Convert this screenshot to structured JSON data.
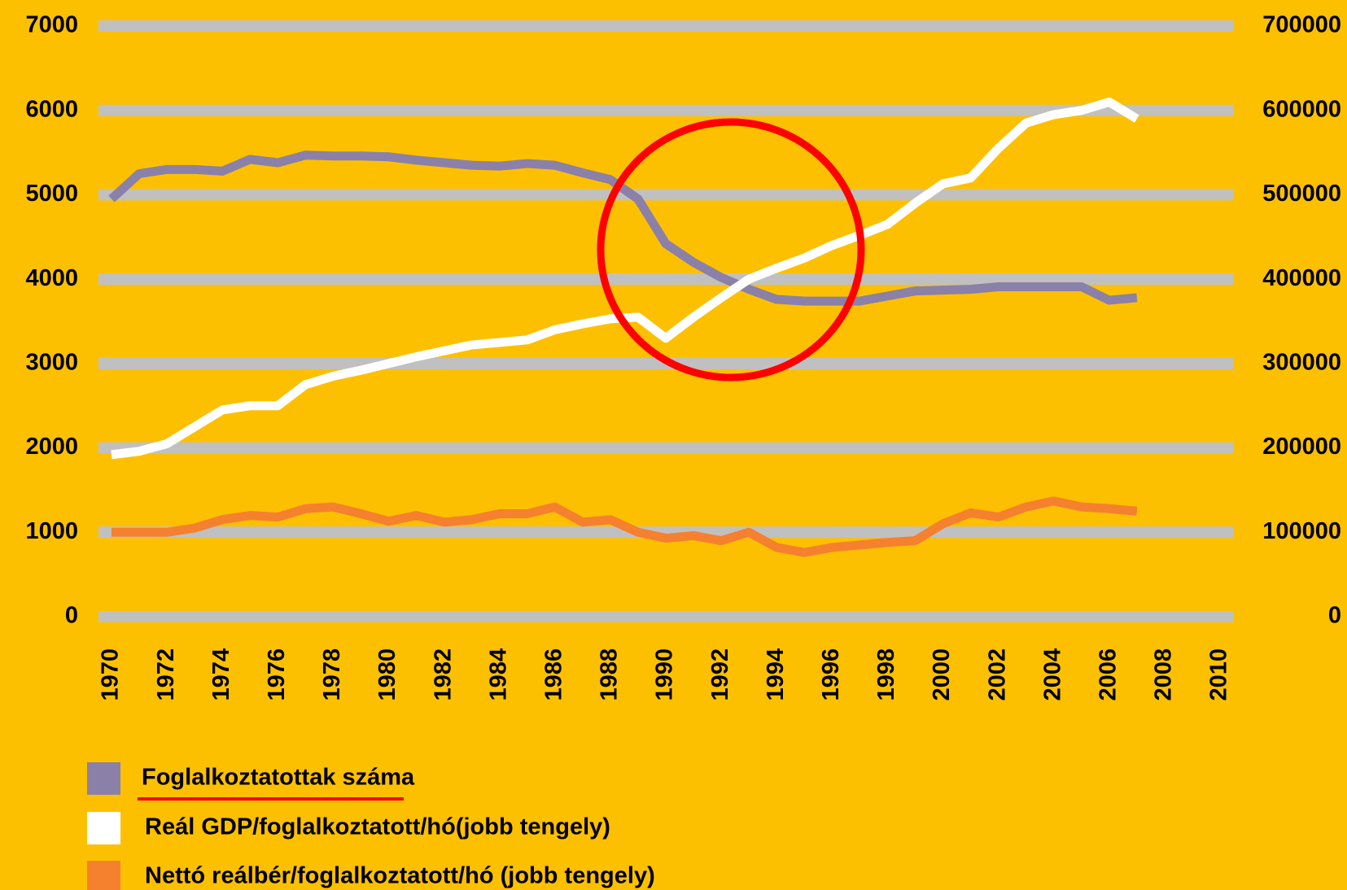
{
  "chart_data": {
    "type": "line",
    "x": [
      1970,
      1971,
      1972,
      1973,
      1974,
      1975,
      1976,
      1977,
      1978,
      1979,
      1980,
      1981,
      1982,
      1983,
      1984,
      1985,
      1986,
      1987,
      1988,
      1989,
      1990,
      1991,
      1992,
      1993,
      1994,
      1995,
      1996,
      1997,
      1998,
      1999,
      2000,
      2001,
      2002,
      2003,
      2004,
      2005,
      2006,
      2007
    ],
    "series": [
      {
        "name": "Foglalkoztatottak száma",
        "color": "#8b80a8",
        "values": [
          4950,
          5250,
          5300,
          5300,
          5280,
          5420,
          5380,
          5470,
          5460,
          5460,
          5450,
          5410,
          5380,
          5350,
          5340,
          5370,
          5350,
          5260,
          5180,
          4950,
          4420,
          4200,
          4020,
          3880,
          3760,
          3740,
          3740,
          3740,
          3800,
          3860,
          3870,
          3880,
          3910,
          3910,
          3910,
          3910,
          3750,
          3780
        ]
      },
      {
        "name": "Reál GDP/foglalkoztatott/hó(jobb tengely)",
        "color": "#ffffff",
        "axis": "y2",
        "values": [
          192000,
          196000,
          205000,
          225000,
          245000,
          250000,
          250000,
          275000,
          285000,
          292000,
          300000,
          308000,
          315000,
          322000,
          325000,
          328000,
          340000,
          347000,
          353000,
          355000,
          330000,
          355000,
          378000,
          400000,
          413000,
          425000,
          440000,
          452000,
          465000,
          490000,
          513000,
          520000,
          555000,
          585000,
          595000,
          600000,
          610000,
          590000
        ]
      },
      {
        "name": "Nettó reálbér/foglalkoztatott/hó (jobb tengely)",
        "color": "#f5802e",
        "axis": "y2",
        "values": [
          100000,
          100000,
          100000,
          105000,
          115000,
          120000,
          118000,
          128000,
          130000,
          122000,
          113000,
          120000,
          112000,
          115000,
          122000,
          122000,
          130000,
          112000,
          115000,
          100000,
          93000,
          96000,
          90000,
          100000,
          82000,
          76000,
          82000,
          85000,
          88000,
          90000,
          110000,
          123000,
          118000,
          130000,
          137000,
          130000,
          128000,
          125000
        ]
      }
    ],
    "xlim": [
      1970,
      2010
    ],
    "xticks": [
      1970,
      1972,
      1974,
      1976,
      1978,
      1980,
      1982,
      1984,
      1986,
      1988,
      1990,
      1992,
      1994,
      1996,
      1998,
      2000,
      2002,
      2004,
      2006,
      2008,
      2010
    ],
    "ylim": [
      0,
      7000
    ],
    "yticks": [
      0,
      1000,
      2000,
      3000,
      4000,
      5000,
      6000,
      7000
    ],
    "y2lim": [
      0,
      700000
    ],
    "y2ticks": [
      0,
      100000,
      200000,
      300000,
      400000,
      500000,
      600000,
      700000
    ],
    "grid": true
  }
}
